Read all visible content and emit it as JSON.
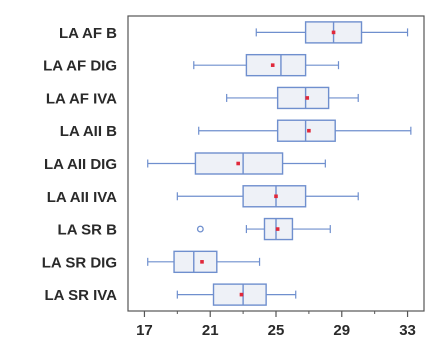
{
  "chart_data": {
    "type": "boxplot",
    "orientation": "horizontal",
    "title": "",
    "xlabel": "",
    "ylabel": "",
    "xlim": [
      16,
      34
    ],
    "xticks": [
      17,
      21,
      25,
      29,
      33
    ],
    "grid": false,
    "colors": {
      "box": "#6f8fce",
      "fill": "#eef1f7",
      "mean": "#e0283a",
      "frame": "#555555"
    },
    "series": [
      {
        "label": "LA AF B",
        "whisker_low": 23.8,
        "q1": 26.8,
        "median": 28.5,
        "q3": 30.2,
        "whisker_high": 33.0,
        "mean": 28.5,
        "outliers": []
      },
      {
        "label": "LA AF DIG",
        "whisker_low": 20.0,
        "q1": 23.2,
        "median": 25.3,
        "q3": 26.8,
        "whisker_high": 28.8,
        "mean": 24.8,
        "outliers": []
      },
      {
        "label": "LA AF IVA",
        "whisker_low": 22.0,
        "q1": 25.1,
        "median": 26.8,
        "q3": 28.2,
        "whisker_high": 30.0,
        "mean": 26.9,
        "outliers": []
      },
      {
        "label": "LA AII B",
        "whisker_low": 20.3,
        "q1": 25.1,
        "median": 26.8,
        "q3": 28.6,
        "whisker_high": 33.2,
        "mean": 27.0,
        "outliers": []
      },
      {
        "label": "LA AII DIG",
        "whisker_low": 17.2,
        "q1": 20.1,
        "median": 23.0,
        "q3": 25.4,
        "whisker_high": 28.0,
        "mean": 22.7,
        "outliers": []
      },
      {
        "label": "LA AII IVA",
        "whisker_low": 19.0,
        "q1": 23.0,
        "median": 25.0,
        "q3": 26.8,
        "whisker_high": 30.0,
        "mean": 25.0,
        "outliers": []
      },
      {
        "label": "LA SR B",
        "whisker_low": 23.2,
        "q1": 24.3,
        "median": 25.0,
        "q3": 26.0,
        "whisker_high": 28.3,
        "mean": 25.1,
        "outliers": [
          20.4
        ]
      },
      {
        "label": "LA SR DIG",
        "whisker_low": 17.2,
        "q1": 18.8,
        "median": 20.0,
        "q3": 21.4,
        "whisker_high": 24.0,
        "mean": 20.5,
        "outliers": []
      },
      {
        "label": "LA SR IVA",
        "whisker_low": 19.0,
        "q1": 21.2,
        "median": 23.0,
        "q3": 24.4,
        "whisker_high": 26.2,
        "mean": 22.9,
        "outliers": []
      }
    ]
  }
}
